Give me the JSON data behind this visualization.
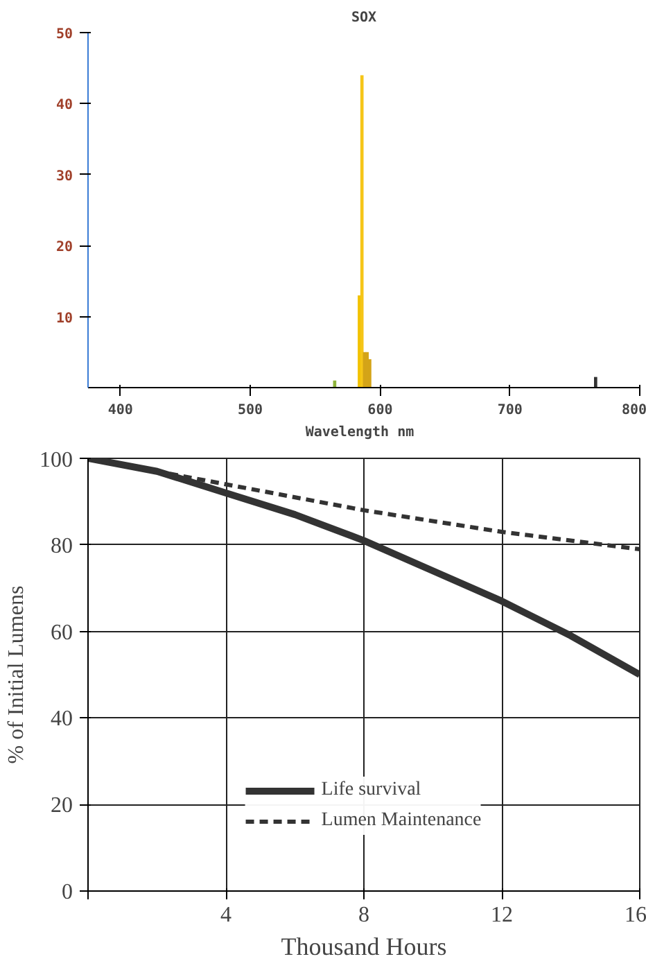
{
  "chart_data": [
    {
      "type": "bar",
      "title": "SOX",
      "xlabel": "Wavelength  nm",
      "x": [
        565,
        584,
        586,
        588,
        590,
        592,
        766
      ],
      "values": [
        1,
        13,
        44,
        5,
        5,
        4,
        1.5
      ],
      "colors": [
        "#8db33a",
        "#f2c200",
        "#f5c518",
        "#d4a418",
        "#d4a418",
        "#d4a418",
        "#333333"
      ],
      "xlim": [
        375,
        800
      ],
      "xticks": [
        400,
        500,
        600,
        700,
        800
      ],
      "ylim": [
        0,
        50
      ],
      "yticks": [
        10,
        20,
        30,
        40,
        50
      ],
      "grid": false,
      "legend": false
    },
    {
      "type": "line",
      "xlabel": "Thousand Hours",
      "ylabel": "% of Initial Lumens",
      "series": [
        {
          "name": "Life survival",
          "color": "#333333",
          "line_style": "solid",
          "x": [
            0,
            2,
            4,
            6,
            8,
            10,
            12,
            14,
            16
          ],
          "values": [
            100,
            97,
            92,
            87,
            81,
            74,
            67,
            59,
            50
          ]
        },
        {
          "name": "Lumen Maintenance",
          "color": "#333333",
          "line_style": "dashed",
          "x": [
            0,
            4,
            8,
            12,
            16
          ],
          "values": [
            100,
            94,
            88,
            83,
            79
          ]
        }
      ],
      "xlim": [
        0,
        16
      ],
      "xticks": [
        {
          "value": 0,
          "label": null
        },
        4,
        8,
        12,
        16
      ],
      "ylim": [
        0,
        100
      ],
      "yticks": [
        0,
        20,
        40,
        60,
        80,
        100
      ],
      "grid": true,
      "legend": "bottom"
    }
  ]
}
